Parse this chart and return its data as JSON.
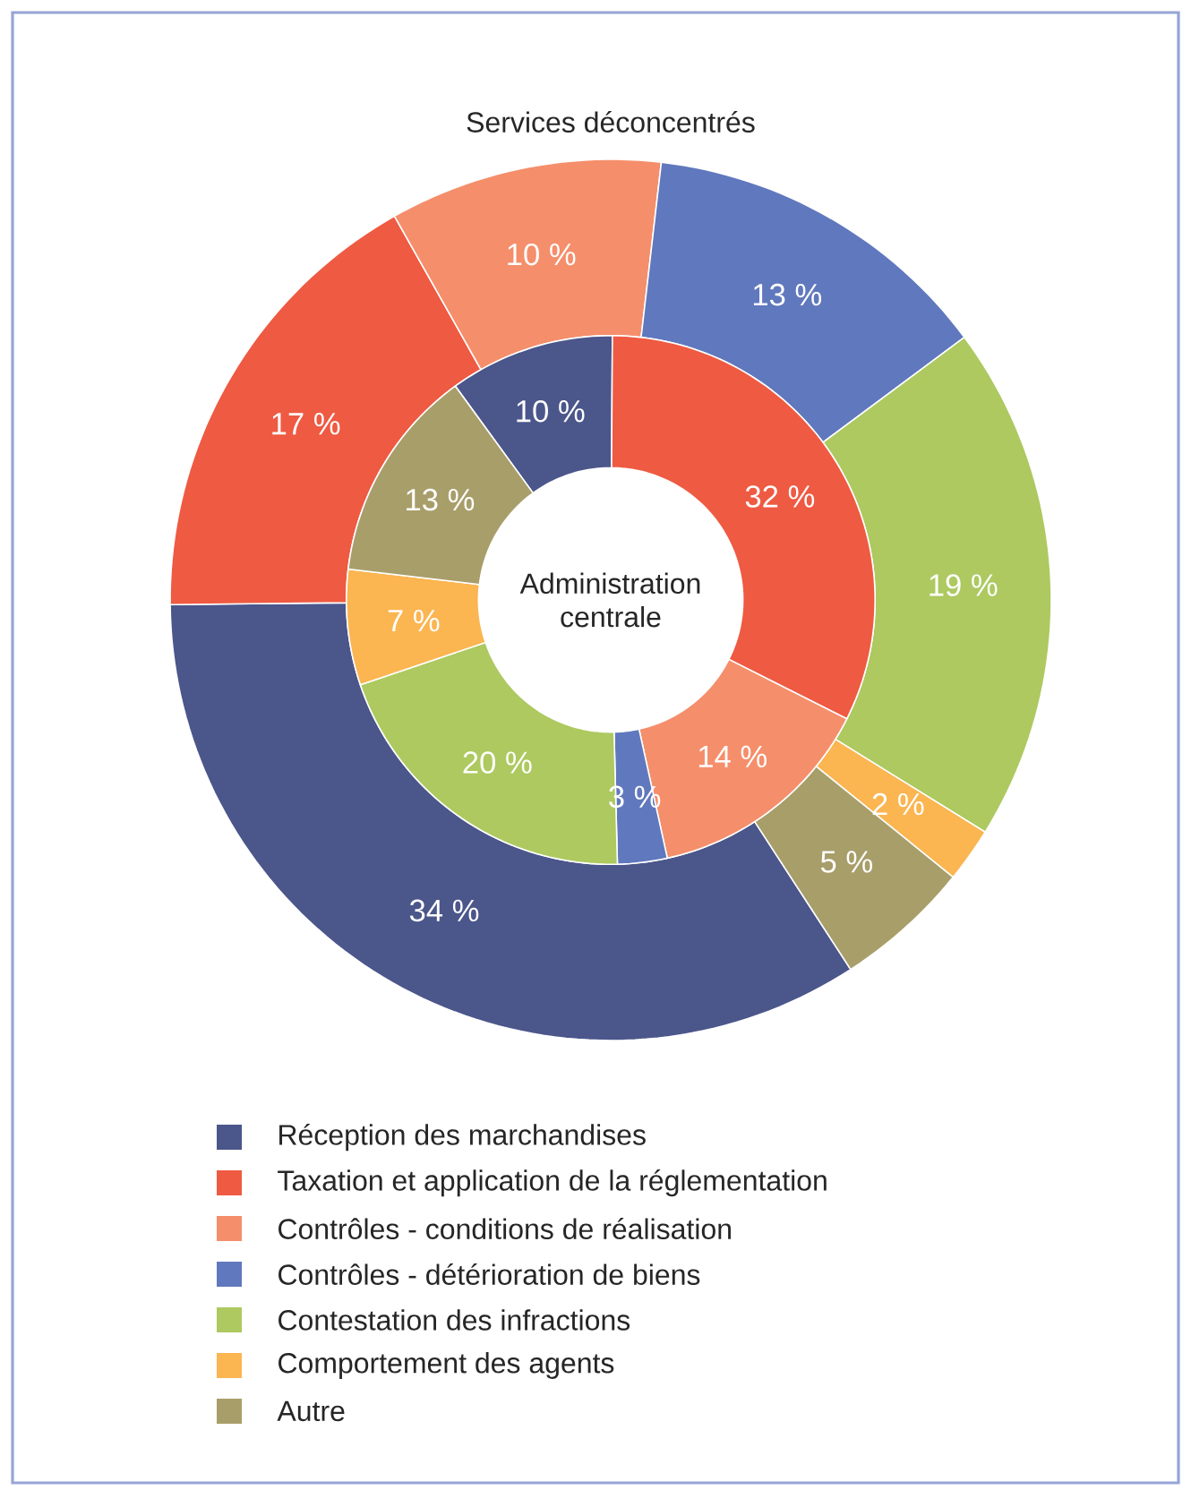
{
  "chart_data": {
    "type": "donut",
    "categories": [
      "Réception des marchandises",
      "Taxation et application de la réglementation",
      "Contrôles - conditions de réalisation",
      "Contrôles - détérioration de biens",
      "Contestation des infractions",
      "Comportement des agents",
      "Autre"
    ],
    "colors": [
      "#4b568b",
      "#ef5a42",
      "#f58e6b",
      "#6078bd",
      "#adc960",
      "#fbb551",
      "#a89e6a"
    ],
    "series": [
      {
        "name": "Services déconcentrés",
        "values": [
          34,
          17,
          10,
          13,
          19,
          2,
          5
        ],
        "value_labels": [
          "34 %",
          "17 %",
          "10 %",
          "13 %",
          "19 %",
          "2 %",
          "5 %"
        ]
      },
      {
        "name": "Administration centrale",
        "values": [
          10,
          32,
          14,
          3,
          20,
          7,
          13
        ],
        "value_labels": [
          "10 %",
          "32 %",
          "14 %",
          "3 %",
          "20 %",
          "7 %",
          "13 %"
        ]
      }
    ],
    "legend": "bottom"
  }
}
